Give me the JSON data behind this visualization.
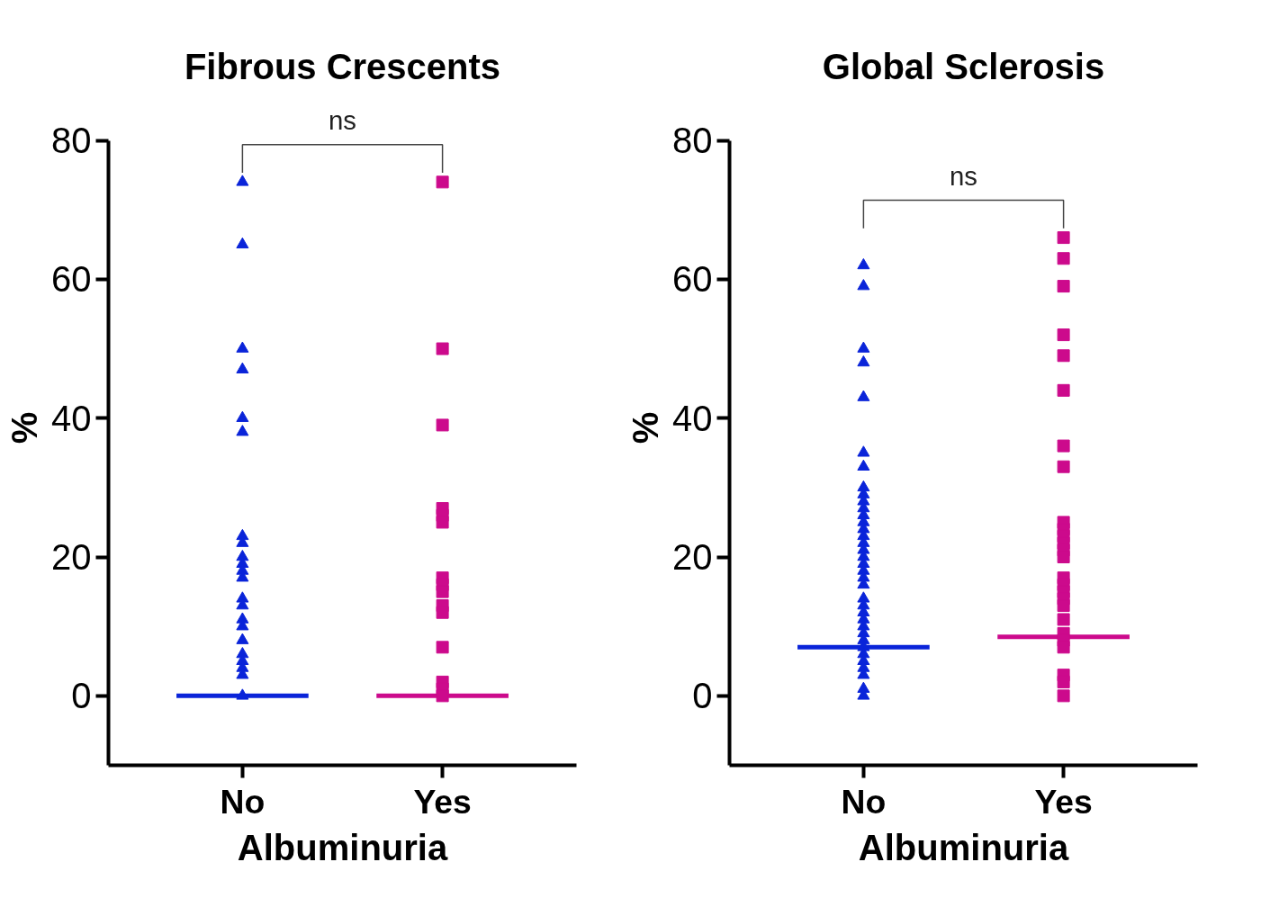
{
  "chart_data": [
    {
      "type": "scatter",
      "title": "Fibrous Crescents",
      "xlabel": "Albuminuria",
      "ylabel": "%",
      "categories": [
        "No",
        "Yes"
      ],
      "ylim": [
        -10,
        80
      ],
      "yticks": [
        0,
        20,
        40,
        60,
        80
      ],
      "grid": false,
      "annotations": [
        "ns"
      ],
      "ref_lines": [
        {
          "axis": "y",
          "value": 0,
          "color": "#0a24d9"
        },
        {
          "axis": "y",
          "value": 0,
          "color": "#cc0a8c"
        }
      ],
      "series": [
        {
          "color": "#0a24d9",
          "marker": "triangle",
          "x": [
            "No",
            "No",
            "No",
            "No",
            "No",
            "No",
            "No",
            "No",
            "No",
            "No",
            "No",
            "No",
            "No",
            "No",
            "No",
            "No",
            "No",
            "No",
            "No",
            "No",
            "No",
            "No"
          ],
          "values": [
            74,
            65,
            50,
            47,
            40,
            38,
            23,
            22,
            20,
            19,
            18,
            17,
            14,
            13,
            11,
            10,
            8,
            6,
            5,
            4,
            3,
            0
          ]
        },
        {
          "color": "#cc0a8c",
          "marker": "square",
          "x": [
            "Yes",
            "Yes",
            "Yes",
            "Yes",
            "Yes",
            "Yes",
            "Yes",
            "Yes",
            "Yes",
            "Yes",
            "Yes",
            "Yes",
            "Yes",
            "Yes",
            "Yes"
          ],
          "values": [
            74,
            50,
            39,
            27,
            26,
            25,
            17,
            16,
            15,
            13,
            12,
            7,
            2,
            1,
            0
          ]
        }
      ]
    },
    {
      "type": "scatter",
      "title": "Global Sclerosis",
      "xlabel": "Albuminuria",
      "ylabel": "%",
      "categories": [
        "No",
        "Yes"
      ],
      "ylim": [
        -10,
        80
      ],
      "yticks": [
        0,
        20,
        40,
        60,
        80
      ],
      "grid": false,
      "annotations": [
        "ns"
      ],
      "ref_lines": [
        {
          "axis": "y",
          "value": 7,
          "color": "#0a24d9"
        },
        {
          "axis": "y",
          "value": 8.5,
          "color": "#cc0a8c"
        }
      ],
      "series": [
        {
          "color": "#0a24d9",
          "marker": "triangle",
          "x": [
            "No",
            "No",
            "No",
            "No",
            "No",
            "No",
            "No",
            "No",
            "No",
            "No",
            "No",
            "No",
            "No",
            "No",
            "No",
            "No",
            "No",
            "No",
            "No",
            "No",
            "No",
            "No",
            "No",
            "No",
            "No",
            "No",
            "No",
            "No",
            "No",
            "No",
            "No",
            "No",
            "No",
            "No",
            "No",
            "No"
          ],
          "values": [
            62,
            59,
            50,
            48,
            43,
            35,
            33,
            30,
            29,
            28,
            27,
            26,
            25,
            24,
            23,
            22,
            21,
            20,
            19,
            18,
            17,
            16,
            14,
            13,
            12,
            11,
            10,
            9,
            8,
            7,
            6,
            5,
            4,
            3,
            1,
            0
          ]
        },
        {
          "color": "#cc0a8c",
          "marker": "square",
          "x": [
            "Yes",
            "Yes",
            "Yes",
            "Yes",
            "Yes",
            "Yes",
            "Yes",
            "Yes",
            "Yes",
            "Yes",
            "Yes",
            "Yes",
            "Yes",
            "Yes",
            "Yes",
            "Yes",
            "Yes",
            "Yes",
            "Yes",
            "Yes",
            "Yes",
            "Yes",
            "Yes",
            "Yes",
            "Yes",
            "Yes"
          ],
          "values": [
            66,
            63,
            59,
            52,
            49,
            44,
            36,
            33,
            25,
            24,
            23,
            22,
            21,
            20,
            17,
            16,
            15,
            14,
            13,
            11,
            9,
            8,
            7,
            3,
            2,
            0
          ]
        }
      ]
    }
  ]
}
